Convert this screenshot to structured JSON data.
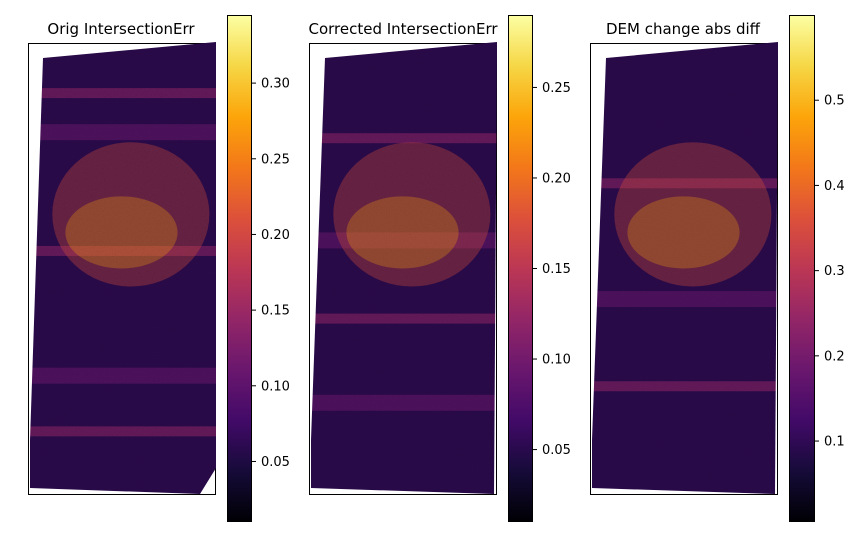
{
  "chart_data": [
    {
      "type": "heatmap",
      "title": "Orig IntersectionErr",
      "xlabel": "",
      "ylabel": "",
      "colormap": "inferno",
      "colorbar": {
        "range": [
          0.01,
          0.345
        ],
        "ticks": [
          0.05,
          0.1,
          0.15,
          0.2,
          0.25,
          0.3
        ],
        "tick_labels": [
          "0.05",
          "0.10",
          "0.15",
          "0.20",
          "0.25",
          "0.30"
        ]
      },
      "grid": false
    },
    {
      "type": "heatmap",
      "title": "Corrected IntersectionErr",
      "xlabel": "",
      "ylabel": "",
      "colormap": "inferno",
      "colorbar": {
        "range": [
          0.01,
          0.29
        ],
        "ticks": [
          0.05,
          0.1,
          0.15,
          0.2,
          0.25
        ],
        "tick_labels": [
          "0.05",
          "0.10",
          "0.15",
          "0.20",
          "0.25"
        ]
      },
      "grid": false
    },
    {
      "type": "heatmap",
      "title": "DEM change abs diff",
      "xlabel": "",
      "ylabel": "",
      "colormap": "inferno",
      "colorbar": {
        "range": [
          0.005,
          0.6
        ],
        "ticks": [
          0.1,
          0.2,
          0.3,
          0.4,
          0.5
        ],
        "tick_labels": [
          "0.1",
          "0.2",
          "0.3",
          "0.4",
          "0.5"
        ]
      },
      "grid": false
    }
  ]
}
